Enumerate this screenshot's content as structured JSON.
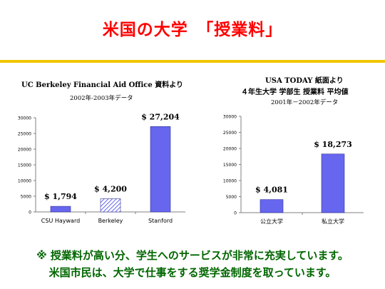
{
  "title": "米国の大学　「授業料」",
  "left_source": {
    "line1": "UC Berkeley Financial Aid Office 資料より",
    "line2": "2002年-2003年データ"
  },
  "right_source": {
    "line1": "USA TODAY 紙面より",
    "line2": "４年生大学 学部生 授業料 平均値",
    "line3": "2001年－2002年データ"
  },
  "footer": {
    "line1": "※ 授業料が高い分、学生へのサービスが非常に充実しています。",
    "line2": "米国市民は、大学で仕事をする奨学金制度を取っています。"
  },
  "colors": {
    "title": "#ff0000",
    "bar": "#6666ee",
    "footer": "#006600",
    "rule": "#f2c500"
  },
  "chart_data": [
    {
      "type": "bar",
      "title": "",
      "xlabel": "",
      "ylabel": "",
      "ylim": [
        0,
        30000
      ],
      "yticks": [
        "0",
        "5000",
        "10000",
        "15000",
        "20000",
        "25000",
        "30000"
      ],
      "grid": false,
      "categories": [
        "CSU Hayward",
        "Berkeley",
        "Stanford"
      ],
      "values": [
        1794,
        4200,
        27204
      ],
      "data_labels": [
        "$ 1,794",
        "$ 4,200",
        "$ 27,204"
      ],
      "hatched": [
        false,
        true,
        false
      ]
    },
    {
      "type": "bar",
      "title": "",
      "xlabel": "",
      "ylabel": "",
      "ylim": [
        0,
        30000
      ],
      "yticks": [
        "0",
        "5000",
        "10000",
        "15000",
        "20000",
        "25000",
        "30000"
      ],
      "grid": false,
      "categories": [
        "公立大学",
        "私立大学"
      ],
      "values": [
        4081,
        18273
      ],
      "data_labels": [
        "$ 4,081",
        "$ 18,273"
      ],
      "hatched": [
        false,
        false
      ]
    }
  ]
}
